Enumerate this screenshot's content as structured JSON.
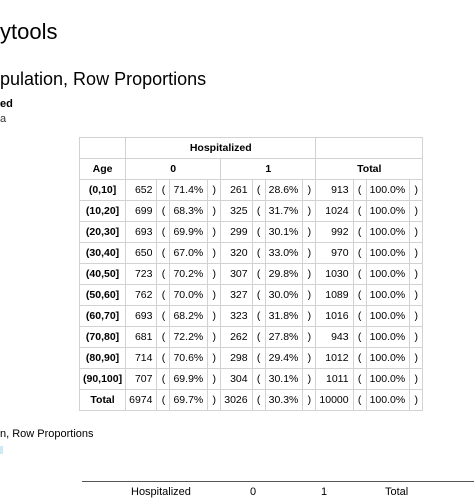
{
  "page": {
    "title": "ytools",
    "subtitle": "pulation, Row Proportions",
    "meta_line1": "ed",
    "meta_line2": "a",
    "caption": "n, Row Proportions"
  },
  "table": {
    "group_header": "Hospitalized",
    "row_header": "Age",
    "col_headers": [
      "0",
      "1",
      "Total"
    ],
    "rows": [
      {
        "label": "(0,10]",
        "c0": "652",
        "p0": "71.4%",
        "c1": "261",
        "p1": "28.6%",
        "t": "913",
        "pt": "100.0%"
      },
      {
        "label": "(10,20]",
        "c0": "699",
        "p0": "68.3%",
        "c1": "325",
        "p1": "31.7%",
        "t": "1024",
        "pt": "100.0%"
      },
      {
        "label": "(20,30]",
        "c0": "693",
        "p0": "69.9%",
        "c1": "299",
        "p1": "30.1%",
        "t": "992",
        "pt": "100.0%"
      },
      {
        "label": "(30,40]",
        "c0": "650",
        "p0": "67.0%",
        "c1": "320",
        "p1": "33.0%",
        "t": "970",
        "pt": "100.0%"
      },
      {
        "label": "(40,50]",
        "c0": "723",
        "p0": "70.2%",
        "c1": "307",
        "p1": "29.8%",
        "t": "1030",
        "pt": "100.0%"
      },
      {
        "label": "(50,60]",
        "c0": "762",
        "p0": "70.0%",
        "c1": "327",
        "p1": "30.0%",
        "t": "1089",
        "pt": "100.0%"
      },
      {
        "label": "(60,70]",
        "c0": "693",
        "p0": "68.2%",
        "c1": "323",
        "p1": "31.8%",
        "t": "1016",
        "pt": "100.0%"
      },
      {
        "label": "(70,80]",
        "c0": "681",
        "p0": "72.2%",
        "c1": "262",
        "p1": "27.8%",
        "t": "943",
        "pt": "100.0%"
      },
      {
        "label": "(80,90]",
        "c0": "714",
        "p0": "70.6%",
        "c1": "298",
        "p1": "29.4%",
        "t": "1012",
        "pt": "100.0%"
      },
      {
        "label": "(90,100]",
        "c0": "707",
        "p0": "69.9%",
        "c1": "304",
        "p1": "30.1%",
        "t": "1011",
        "pt": "100.0%"
      },
      {
        "label": "Total",
        "c0": "6974",
        "p0": "69.7%",
        "c1": "3026",
        "p1": "30.3%",
        "t": "10000",
        "pt": "100.0%"
      }
    ]
  },
  "bottom_table": {
    "headers": [
      "Hospitalized",
      "0",
      "1",
      "Total"
    ]
  },
  "colors": {
    "border": "#d2d2d2",
    "accent_mark": "#cfe8f5"
  }
}
